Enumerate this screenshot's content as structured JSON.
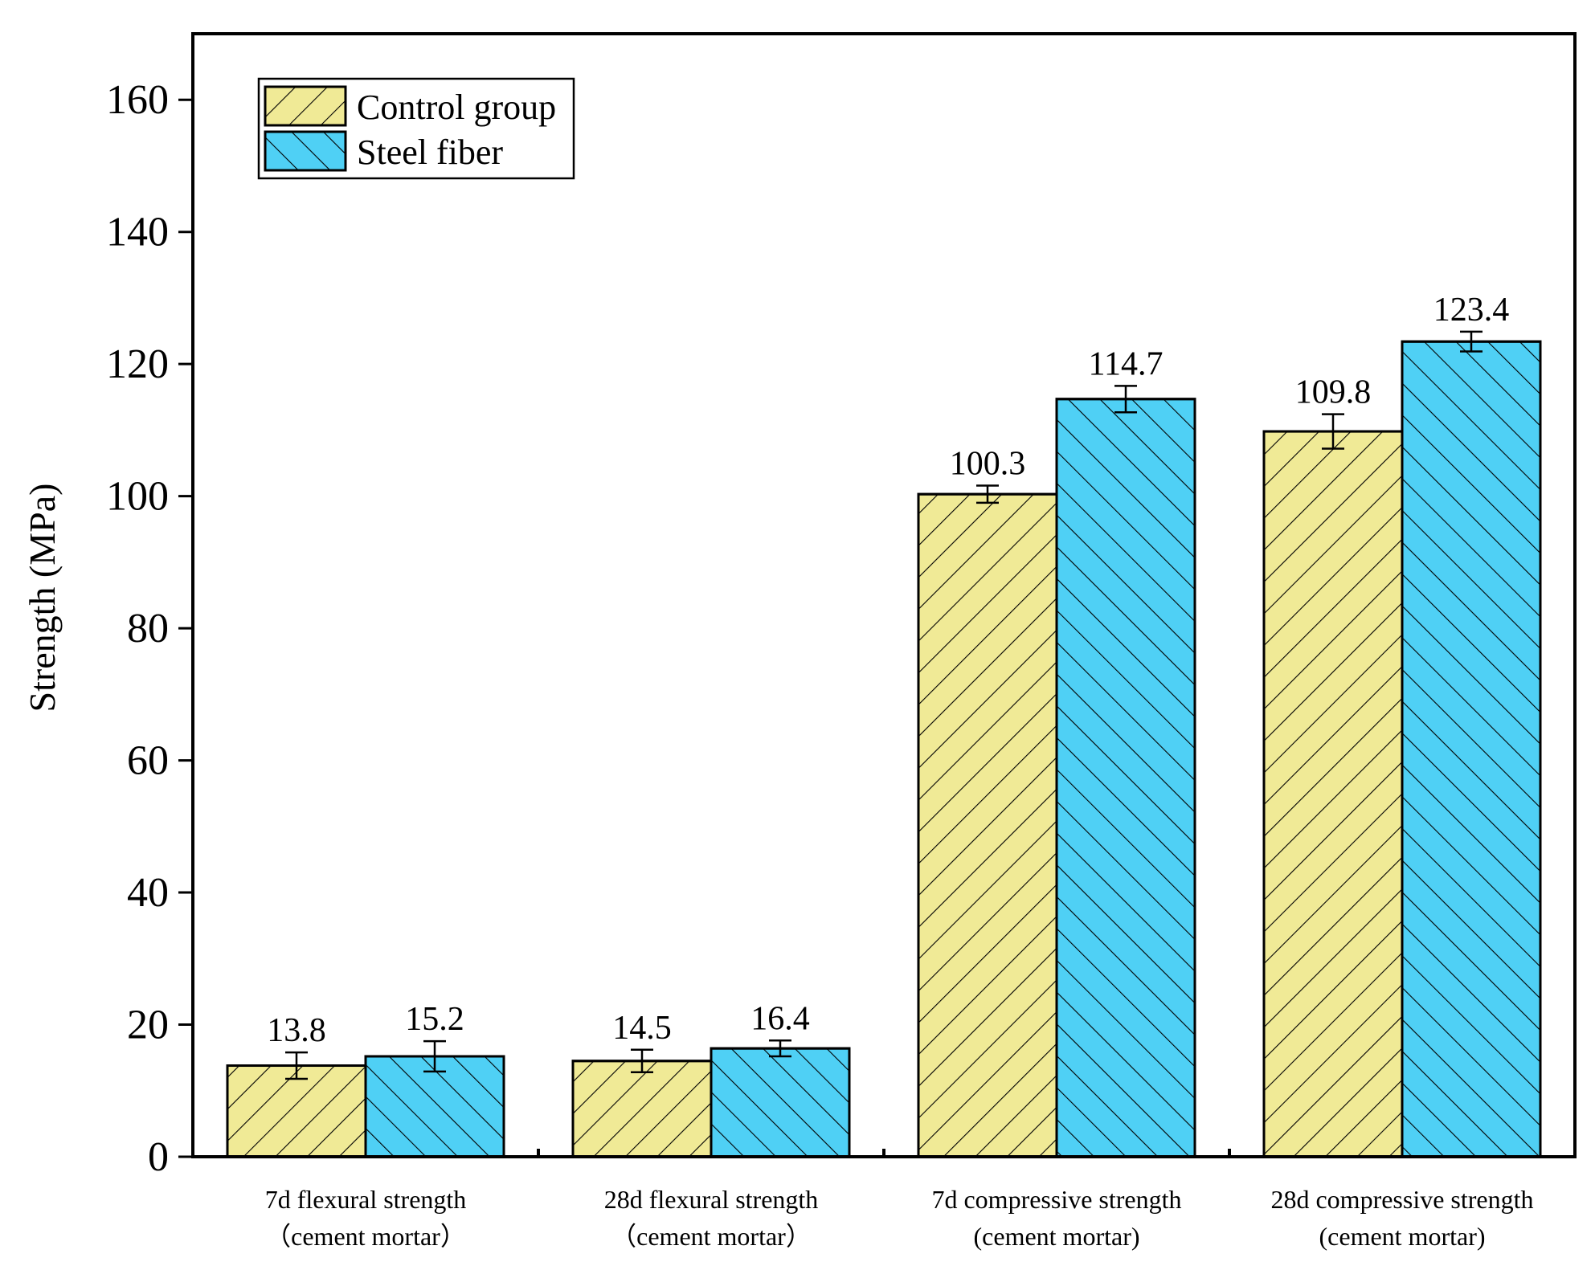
{
  "chart_data": {
    "type": "bar",
    "title": "",
    "xlabel": "",
    "ylabel": "Strength (MPa)",
    "ylim": [
      0,
      170
    ],
    "yticks": [
      0,
      20,
      40,
      60,
      80,
      100,
      120,
      140,
      160
    ],
    "grid": false,
    "legend_position": "top-left",
    "categories": [
      {
        "line1": "7d flexural strength",
        "line2": "（cement mortar）"
      },
      {
        "line1": "28d flexural strength",
        "line2": "（cement mortar）"
      },
      {
        "line1": "7d compressive strength",
        "line2": "(cement mortar)"
      },
      {
        "line1": "28d compressive strength",
        "line2": "(cement mortar)"
      }
    ],
    "series": [
      {
        "name": "Control group",
        "color": "#F0EA96",
        "hatch": "forward-diagonal",
        "values": [
          13.8,
          14.5,
          100.3,
          109.8
        ],
        "labels": [
          "13.8",
          "14.5",
          "100.3",
          "109.8"
        ],
        "errors": [
          2.0,
          1.7,
          1.3,
          2.6
        ]
      },
      {
        "name": "Steel fiber",
        "color": "#4FD0F5",
        "hatch": "back-diagonal",
        "values": [
          15.2,
          16.4,
          114.7,
          123.4
        ],
        "labels": [
          "15.2",
          "16.4",
          "114.7",
          "123.4"
        ],
        "errors": [
          2.3,
          1.2,
          2.0,
          1.5
        ]
      }
    ]
  }
}
